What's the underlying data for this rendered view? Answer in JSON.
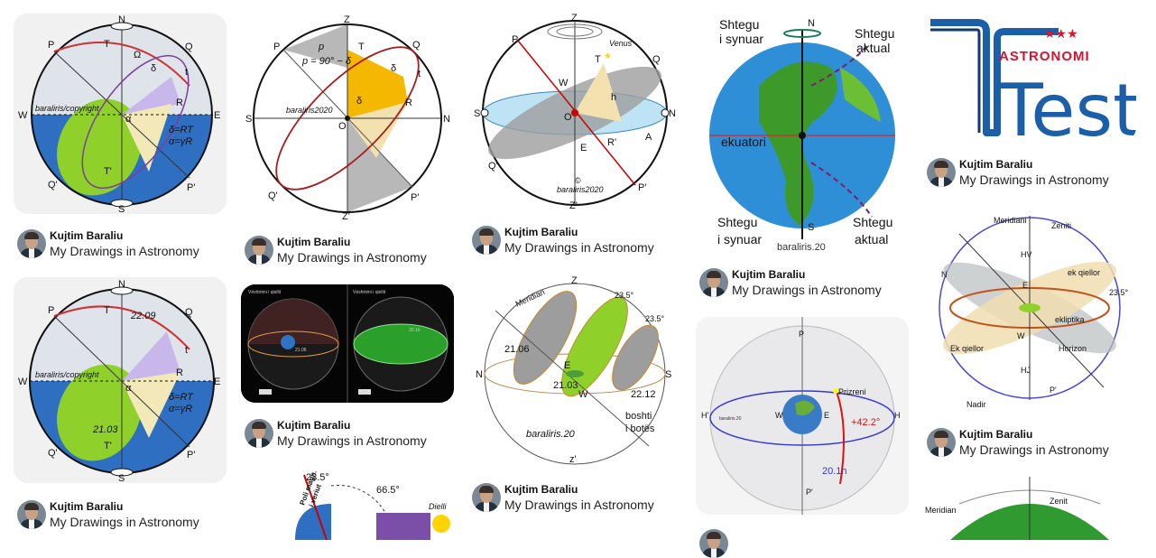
{
  "pins": [
    {
      "author": "Kujtim Baraliu",
      "board": "My Drawings in Astronomy"
    },
    {
      "author": "Kujtim Baraliu",
      "board": "My Drawings in Astronomy"
    },
    {
      "author": "Kujtim Baraliu",
      "board": "My Drawings in Astronomy"
    },
    {
      "author": "Kujtim Baraliu",
      "board": "My Drawings in Astronomy"
    },
    {
      "author": "Kujtim Baraliu",
      "board": "My Drawings in Astronomy"
    },
    {
      "author": "Kujtim Baraliu",
      "board": "My Drawings in Astronomy"
    },
    {
      "author": "Kujtim Baraliu",
      "board": "My Drawings in Astronomy"
    },
    {
      "author": "Kujtim Baraliu",
      "board": "My Drawings in Astronomy"
    },
    {
      "author": "Kujtim Baraliu",
      "board": "My Drawings in Astronomy"
    }
  ],
  "img1": {
    "N": "N",
    "S": "S",
    "P": "P",
    "Q": "Q",
    "W": "W",
    "E": "E",
    "Qp": "Q'",
    "Pp": "P'",
    "T": "T",
    "Tp": "T'",
    "R": "R",
    "Om": "Ω",
    "delta": "δ",
    "t": "t",
    "alpha": "α",
    "credit": "baraliris/copyright",
    "f1": "δ=RT",
    "f2": "α=γR"
  },
  "img2": {
    "N": "N",
    "S": "S",
    "P": "P",
    "Q": "Q",
    "W": "W",
    "E": "E",
    "Qp": "Q'",
    "Pp": "P'",
    "T": "T",
    "Tp": "T'",
    "R": "R",
    "t": "t",
    "alpha": "α",
    "credit": "baraliris/copyright",
    "f1": "δ=RT",
    "f2": "α=γR",
    "d1": "22.09",
    "d2": "21.03"
  },
  "img3": {
    "Z": "Z",
    "Zp": "Z'",
    "P": "P",
    "Q": "Q",
    "S": "S",
    "N": "N",
    "O": "O",
    "T": "T",
    "R": "R",
    "Qp": "Q'",
    "Pp": "P'",
    "p": "p",
    "delta": "δ",
    "delta2": "δ",
    "formula": "p = 90° − δ",
    "credit": "baraliris2020",
    "t": "t"
  },
  "img4": {
    "Z": "Z",
    "Zp": "Z'",
    "P": "P",
    "Q": "Q",
    "S": "S",
    "N": "N",
    "O": "O",
    "W": "W",
    "E": "E",
    "T": "T",
    "R": "R'",
    "A": "A",
    "h": "h",
    "Qp": "Q'",
    "Pp": "P'",
    "venus": "Venus",
    "credit": "baraliris2020",
    "copy": "©"
  },
  "img5": {
    "N": "N",
    "S": "S",
    "e1": "Shtegu",
    "e2": "i synuar",
    "a1": "Shtegu",
    "a2": "aktual",
    "eq": "ekuatori",
    "b1": "Shtegu",
    "b2": "i synuar",
    "c1": "Shtegu",
    "c2": "aktual",
    "credit": "baraliris.20"
  },
  "img6": {
    "word": "ASTRONOMI",
    "big": "Test",
    "stars": "★★★"
  },
  "img7": {
    "l1": "Vështrimi i qiellit",
    "l2": "Vështrimi i qiellit",
    "v1": "21.06",
    "v2": "20.1h"
  },
  "img8": {
    "Z": "Z",
    "Zp": "z'",
    "N": "N",
    "S": "S",
    "E": "E",
    "W": "W",
    "mer": "Meridian",
    "a1": "23.5°",
    "a2": "23.5°",
    "d1": "21.06",
    "d2": "21.03",
    "d3": "22.12",
    "credit": "baraliris.20",
    "b1": "boshti",
    "b2": "i botës"
  },
  "img9": {
    "mer": "Meridiani",
    "zen": "Zeniti",
    "HV": "HV",
    "HJ": "HJ",
    "N": "N",
    "Pp": "P'",
    "nad": "Nadir",
    "ekq": "ek qiellor",
    "ekl": "ekliptika",
    "hor": "Horizon",
    "ekq2": "Ek qiellor",
    "ang": "23.5°",
    "E": "E",
    "W": "W"
  },
  "img10": {
    "P": "P",
    "Pp": "P'",
    "H": "H",
    "Hp": "H'",
    "W": "W",
    "E": "E",
    "pr": "Prizreni",
    "lat": "+42.2°",
    "ra": "20.1h",
    "cr": "baraliris.20"
  },
  "img11": {
    "a1": "23.5°",
    "a2": "66.5°",
    "p1": "Poli magn.",
    "p2": "i veriut",
    "sun": "Dielli"
  },
  "img12": {
    "mer": "Meridian",
    "zen": "Zenit"
  }
}
